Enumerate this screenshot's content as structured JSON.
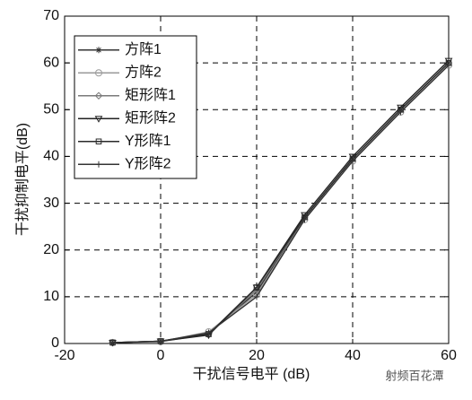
{
  "chart_data": {
    "type": "line",
    "x": [
      -10,
      0,
      10,
      20,
      30,
      40,
      50,
      60
    ],
    "series": [
      {
        "name": "方阵1",
        "color": "#333333",
        "marker": "star",
        "values": [
          0.2,
          0.5,
          2.2,
          11,
          27,
          39.5,
          50,
          60
        ]
      },
      {
        "name": "方阵2",
        "color": "#9a9a9a",
        "marker": "circle",
        "values": [
          0.2,
          0.4,
          2.5,
          10.5,
          26.5,
          39,
          49.5,
          59.5
        ]
      },
      {
        "name": "矩形阵1",
        "color": "#7a7a7a",
        "marker": "diamond",
        "values": [
          0.2,
          0.4,
          2,
          11.5,
          27,
          39.5,
          50,
          60
        ]
      },
      {
        "name": "矩形阵2",
        "color": "#222222",
        "marker": "triangle-down",
        "values": [
          0.2,
          0.5,
          1.8,
          12,
          27.5,
          40,
          50.5,
          60.5
        ]
      },
      {
        "name": "Y形阵1",
        "color": "#2a2a2a",
        "marker": "square",
        "values": [
          0.2,
          0.5,
          2,
          12,
          27,
          39.5,
          50,
          60
        ]
      },
      {
        "name": "Y形阵2",
        "color": "#333333",
        "marker": "plus",
        "values": [
          0.2,
          0.5,
          2.3,
          10,
          26.5,
          39,
          49.5,
          59.5
        ]
      }
    ],
    "xlabel": "干扰信号电平 (dB)",
    "ylabel": "干扰抑制电平(dB)",
    "xlim": [
      -20,
      60
    ],
    "ylim": [
      0,
      70
    ],
    "xticks": [
      -20,
      0,
      20,
      40,
      60
    ],
    "yticks": [
      0,
      10,
      20,
      30,
      40,
      50,
      60,
      70
    ],
    "grid": true,
    "legend": "upper left",
    "watermark": "射频百花潭"
  }
}
